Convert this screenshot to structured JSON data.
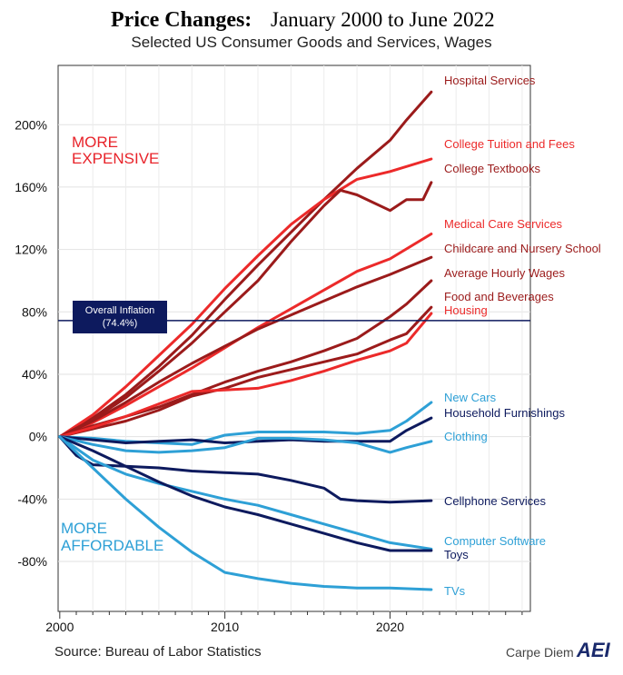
{
  "chart_data": {
    "type": "line",
    "title": "Price Changes:",
    "title_rest": "January 2000 to June 2022",
    "subtitle": "Selected US Consumer Goods and Services, Wages",
    "x_ticks": [
      2000,
      2010,
      2020
    ],
    "x_tick_labels": [
      "2000",
      "2010",
      "2020"
    ],
    "xlim": [
      1999.9,
      2028.5
    ],
    "y_ticks": [
      200,
      160,
      120,
      80,
      40,
      0,
      -40,
      -80
    ],
    "y_tick_labels": [
      "200%",
      "160%",
      "120%",
      "80%",
      "40%",
      "0%",
      "-40%",
      "-80%"
    ],
    "ylim": [
      -112,
      238
    ],
    "annotations": {
      "more_expensive": [
        "MORE",
        "EXPENSIVE"
      ],
      "more_affordable": [
        "MORE",
        "AFFORDABLE"
      ]
    },
    "overall_inflation": {
      "label_line1": "Overall Inflation",
      "label_line2": "(74.4%)",
      "value": 74.4,
      "color": "#0d1a5e"
    },
    "source": "Source: Bureau of Labor Statistics",
    "brand": "Carpe Diem",
    "brand_logo": "AEI",
    "series": [
      {
        "name": "Hospital Services",
        "color": "#9b1b1b",
        "x": [
          2000,
          2002,
          2004,
          2006,
          2008,
          2010,
          2012,
          2014,
          2016,
          2018,
          2020,
          2021,
          2022.5
        ],
        "values": [
          0,
          12,
          27,
          45,
          65,
          88,
          110,
          131,
          152,
          172,
          190,
          203,
          221
        ]
      },
      {
        "name": "College Tuition and Fees",
        "color": "#ec2a2a",
        "x": [
          2000,
          2002,
          2004,
          2006,
          2008,
          2010,
          2012,
          2014,
          2016,
          2018,
          2020,
          2022.5
        ],
        "values": [
          0,
          14,
          32,
          52,
          72,
          95,
          116,
          136,
          152,
          165,
          170,
          178
        ]
      },
      {
        "name": "College Textbooks",
        "color": "#9b1b1b",
        "x": [
          2000,
          2002,
          2004,
          2006,
          2008,
          2010,
          2012,
          2014,
          2016,
          2017,
          2018,
          2019,
          2020,
          2021,
          2022,
          2022.5
        ],
        "values": [
          0,
          11,
          25,
          42,
          60,
          80,
          100,
          125,
          148,
          158,
          155,
          150,
          145,
          152,
          152,
          163
        ]
      },
      {
        "name": "Medical Care Services",
        "color": "#ec2a2a",
        "x": [
          2000,
          2002,
          2004,
          2006,
          2008,
          2010,
          2012,
          2014,
          2016,
          2018,
          2020,
          2022.5
        ],
        "values": [
          0,
          9,
          20,
          32,
          44,
          57,
          70,
          82,
          94,
          106,
          114,
          130
        ]
      },
      {
        "name": "Childcare and Nursery School",
        "color": "#9b1b1b",
        "x": [
          2000,
          2002,
          2004,
          2006,
          2008,
          2010,
          2012,
          2014,
          2016,
          2018,
          2020,
          2022.5
        ],
        "values": [
          0,
          10,
          22,
          35,
          47,
          58,
          69,
          78,
          87,
          96,
          104,
          115
        ]
      },
      {
        "name": "Average Hourly Wages",
        "color": "#9b1b1b",
        "x": [
          2000,
          2002,
          2004,
          2006,
          2008,
          2010,
          2012,
          2014,
          2016,
          2018,
          2020,
          2021,
          2022.5
        ],
        "values": [
          0,
          7,
          13,
          19,
          27,
          35,
          42,
          48,
          55,
          63,
          77,
          85,
          100
        ]
      },
      {
        "name": "Food and Beverages",
        "color": "#9b1b1b",
        "x": [
          2000,
          2002,
          2004,
          2006,
          2008,
          2010,
          2012,
          2014,
          2016,
          2018,
          2020,
          2021,
          2022.5
        ],
        "values": [
          0,
          5,
          10,
          17,
          26,
          31,
          38,
          43,
          48,
          53,
          62,
          66,
          83
        ]
      },
      {
        "name": "Housing",
        "color": "#ec2a2a",
        "x": [
          2000,
          2002,
          2004,
          2006,
          2008,
          2010,
          2012,
          2014,
          2016,
          2018,
          2020,
          2021,
          2022.5
        ],
        "values": [
          0,
          6,
          13,
          21,
          29,
          30,
          31,
          36,
          42,
          49,
          55,
          60,
          79
        ]
      },
      {
        "name": "New Cars",
        "color": "#2ea0d6",
        "x": [
          2000,
          2002,
          2004,
          2006,
          2008,
          2010,
          2012,
          2014,
          2016,
          2018,
          2020,
          2021,
          2022.5
        ],
        "values": [
          0,
          -1,
          -3,
          -4,
          -5,
          1,
          3,
          3,
          3,
          2,
          4,
          10,
          22
        ]
      },
      {
        "name": "Household Furnishings",
        "color": "#0d1a5e",
        "x": [
          2000,
          2002,
          2004,
          2006,
          2008,
          2010,
          2012,
          2014,
          2016,
          2018,
          2020,
          2021,
          2022.5
        ],
        "values": [
          0,
          -2,
          -4,
          -3,
          -2,
          -4,
          -3,
          -2,
          -3,
          -3,
          -3,
          4,
          12
        ]
      },
      {
        "name": "Clothing",
        "color": "#2ea0d6",
        "x": [
          2000,
          2002,
          2004,
          2006,
          2008,
          2010,
          2012,
          2014,
          2016,
          2018,
          2020,
          2021,
          2022.5
        ],
        "values": [
          0,
          -5,
          -9,
          -10,
          -9,
          -7,
          -1,
          -1,
          -2,
          -4,
          -10,
          -7,
          -3
        ]
      },
      {
        "name": "Cellphone Services",
        "color": "#0d1a5e",
        "x": [
          2000,
          2001,
          2002,
          2004,
          2006,
          2008,
          2010,
          2012,
          2014,
          2016,
          2017,
          2018,
          2020,
          2022.5
        ],
        "values": [
          0,
          -12,
          -18,
          -19,
          -20,
          -22,
          -23,
          -24,
          -28,
          -33,
          -40,
          -41,
          -42,
          -41
        ]
      },
      {
        "name": "Computer Software",
        "color": "#2ea0d6",
        "x": [
          2000,
          2002,
          2004,
          2006,
          2008,
          2010,
          2012,
          2014,
          2016,
          2018,
          2020,
          2022.5
        ],
        "values": [
          0,
          -15,
          -24,
          -30,
          -35,
          -40,
          -44,
          -50,
          -56,
          -62,
          -68,
          -72
        ]
      },
      {
        "name": "Toys",
        "color": "#0d1a5e",
        "x": [
          2000,
          2002,
          2004,
          2006,
          2008,
          2010,
          2012,
          2014,
          2016,
          2018,
          2020,
          2022.5
        ],
        "values": [
          0,
          -9,
          -19,
          -29,
          -38,
          -45,
          -50,
          -56,
          -62,
          -68,
          -73,
          -73
        ]
      },
      {
        "name": "TVs",
        "color": "#2ea0d6",
        "x": [
          2000,
          2002,
          2004,
          2006,
          2008,
          2010,
          2012,
          2014,
          2016,
          2018,
          2020,
          2022.5
        ],
        "values": [
          0,
          -20,
          -40,
          -58,
          -74,
          -87,
          -91,
          -94,
          -96,
          -97,
          -97,
          -98
        ]
      }
    ]
  }
}
